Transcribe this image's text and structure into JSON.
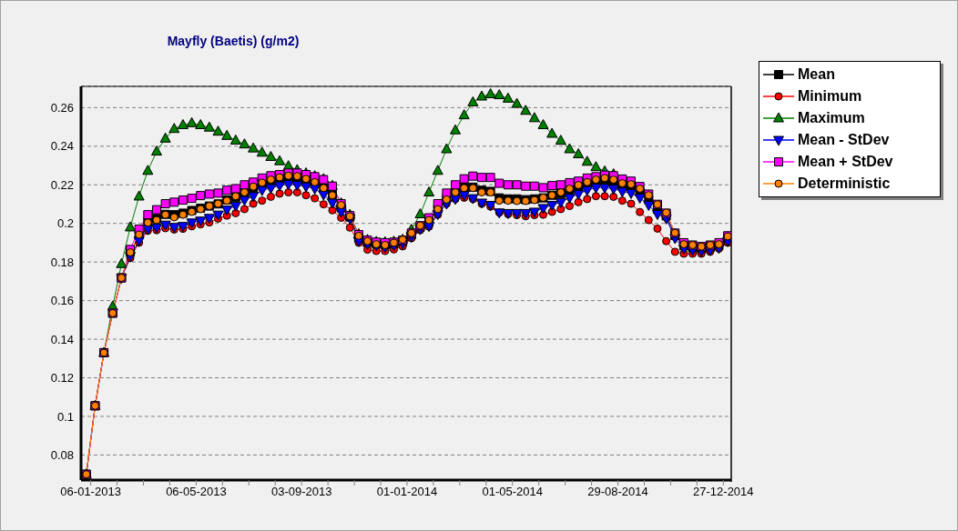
{
  "chart_data": {
    "type": "line",
    "title": "Mayfly (Baetis) (g/m2)",
    "x": [
      "2013-01-01",
      "2013-01-11",
      "2013-01-21",
      "2013-01-31",
      "2013-02-10",
      "2013-02-20",
      "2013-03-02",
      "2013-03-12",
      "2013-03-22",
      "2013-04-01",
      "2013-04-11",
      "2013-04-21",
      "2013-05-01",
      "2013-05-11",
      "2013-05-21",
      "2013-05-31",
      "2013-06-10",
      "2013-06-20",
      "2013-06-30",
      "2013-07-10",
      "2013-07-20",
      "2013-07-30",
      "2013-08-09",
      "2013-08-19",
      "2013-08-29",
      "2013-09-08",
      "2013-09-18",
      "2013-09-28",
      "2013-10-08",
      "2013-10-18",
      "2013-10-28",
      "2013-11-07",
      "2013-11-17",
      "2013-11-27",
      "2013-12-07",
      "2013-12-17",
      "2013-12-27",
      "2014-01-06",
      "2014-01-16",
      "2014-01-26",
      "2014-02-05",
      "2014-02-15",
      "2014-02-25",
      "2014-03-07",
      "2014-03-17",
      "2014-03-27",
      "2014-04-06",
      "2014-04-16",
      "2014-04-26",
      "2014-05-06",
      "2014-05-16",
      "2014-05-26",
      "2014-06-05",
      "2014-06-15",
      "2014-06-25",
      "2014-07-05",
      "2014-07-15",
      "2014-07-25",
      "2014-08-04",
      "2014-08-14",
      "2014-08-24",
      "2014-09-03",
      "2014-09-13",
      "2014-09-23",
      "2014-10-03",
      "2014-10-13",
      "2014-10-23",
      "2014-11-02",
      "2014-11-12",
      "2014-11-22",
      "2014-12-02",
      "2014-12-12",
      "2014-12-22",
      "2015-01-01"
    ],
    "series": [
      {
        "name": "Mean",
        "color": "#000000",
        "marker": "square",
        "values": [
          0.07,
          0.1055,
          0.133,
          0.1535,
          0.1718,
          0.185,
          0.194,
          0.2008,
          0.2025,
          0.2047,
          0.2045,
          0.2053,
          0.2067,
          0.2079,
          0.209,
          0.2101,
          0.2122,
          0.2136,
          0.216,
          0.2178,
          0.2203,
          0.2215,
          0.2225,
          0.2232,
          0.223,
          0.2222,
          0.2211,
          0.2188,
          0.215,
          0.2081,
          0.2033,
          0.1925,
          0.1902,
          0.1894,
          0.1888,
          0.1894,
          0.1905,
          0.194,
          0.198,
          0.2008,
          0.2075,
          0.213,
          0.2163,
          0.2188,
          0.2188,
          0.2172,
          0.2166,
          0.2132,
          0.2127,
          0.2127,
          0.2123,
          0.2127,
          0.2132,
          0.2146,
          0.2155,
          0.2172,
          0.2186,
          0.2204,
          0.2214,
          0.2218,
          0.2214,
          0.2198,
          0.2188,
          0.2162,
          0.2124,
          0.2074,
          0.2039,
          0.1937,
          0.1884,
          0.1875,
          0.1869,
          0.1875,
          0.1886,
          0.1922
        ]
      },
      {
        "name": "Minimum",
        "color": "#ff0000",
        "marker": "circle",
        "values": [
          0.07,
          0.1055,
          0.133,
          0.1535,
          0.1718,
          0.182,
          0.19,
          0.1962,
          0.1965,
          0.1975,
          0.1968,
          0.1972,
          0.1985,
          0.1995,
          0.2005,
          0.2025,
          0.204,
          0.2053,
          0.2074,
          0.2102,
          0.2118,
          0.2138,
          0.2154,
          0.2161,
          0.2161,
          0.2146,
          0.213,
          0.2099,
          0.2068,
          0.2029,
          0.1978,
          0.19,
          0.1864,
          0.1857,
          0.1857,
          0.1865,
          0.1881,
          0.1923,
          0.1965,
          0.1983,
          0.2045,
          0.2102,
          0.2126,
          0.2133,
          0.2126,
          0.2102,
          0.2087,
          0.2056,
          0.2048,
          0.2043,
          0.2037,
          0.2043,
          0.2045,
          0.206,
          0.2074,
          0.209,
          0.211,
          0.2126,
          0.2141,
          0.2141,
          0.2138,
          0.2118,
          0.2102,
          0.2059,
          0.2017,
          0.1973,
          0.1908,
          0.1853,
          0.1843,
          0.1843,
          0.1843,
          0.1853,
          0.1869,
          0.19
        ]
      },
      {
        "name": "Maximum",
        "color": "#008000",
        "marker": "triangle",
        "values": [
          0.07,
          0.1055,
          0.133,
          0.157,
          0.179,
          0.198,
          0.214,
          0.2273,
          0.2373,
          0.244,
          0.249,
          0.251,
          0.252,
          0.251,
          0.2497,
          0.2476,
          0.2454,
          0.243,
          0.241,
          0.2389,
          0.2367,
          0.2345,
          0.2323,
          0.2297,
          0.2277,
          0.226,
          0.2245,
          0.223,
          0.2195,
          0.2105,
          0.2045,
          0.1945,
          0.1915,
          0.1905,
          0.1903,
          0.1906,
          0.1916,
          0.1968,
          0.2048,
          0.2161,
          0.2273,
          0.2385,
          0.2483,
          0.2561,
          0.2628,
          0.2658,
          0.267,
          0.2665,
          0.2647,
          0.262,
          0.2584,
          0.2546,
          0.251,
          0.2465,
          0.2429,
          0.2385,
          0.2359,
          0.232,
          0.2292,
          0.227,
          0.2255,
          null,
          null,
          null,
          null,
          null,
          null,
          null,
          null,
          null,
          null,
          null,
          null,
          null
        ]
      },
      {
        "name": "Mean - StDev",
        "color": "#0000ff",
        "marker": "triangle-down",
        "values": [
          null,
          null,
          null,
          null,
          0.1718,
          0.183,
          0.191,
          0.197,
          0.1978,
          0.1993,
          0.1981,
          0.1986,
          0.2004,
          0.2014,
          0.2028,
          0.2045,
          0.2071,
          0.2091,
          0.2121,
          0.2141,
          0.2172,
          0.2183,
          0.2196,
          0.2203,
          0.2199,
          0.2191,
          0.218,
          0.2149,
          0.2107,
          0.206,
          0.2025,
          0.1908,
          0.1892,
          0.1885,
          0.1877,
          0.1885,
          0.1895,
          0.193,
          0.197,
          0.1986,
          0.2048,
          0.2102,
          0.2126,
          0.2146,
          0.213,
          0.2107,
          0.2095,
          0.2056,
          0.2053,
          0.2053,
          0.2053,
          0.206,
          0.2079,
          0.2095,
          0.211,
          0.2133,
          0.2152,
          0.2172,
          0.2185,
          0.2185,
          0.218,
          0.2165,
          0.2157,
          0.2133,
          0.2095,
          0.2048,
          0.2025,
          0.1923,
          0.1869,
          0.1861,
          0.1857,
          0.1861,
          0.1872,
          0.1908
        ]
      },
      {
        "name": "Mean + StDev",
        "color": "#ff00ff",
        "marker": "square",
        "values": [
          0.07,
          0.1055,
          0.133,
          0.1535,
          0.1718,
          0.1865,
          0.197,
          0.2045,
          0.2071,
          0.2102,
          0.211,
          0.2121,
          0.213,
          0.2144,
          0.2152,
          0.2157,
          0.2172,
          0.218,
          0.22,
          0.2214,
          0.2235,
          0.2247,
          0.2253,
          0.2261,
          0.2261,
          0.2253,
          0.2242,
          0.2227,
          0.2193,
          0.2102,
          0.204,
          0.1942,
          0.1913,
          0.1903,
          0.19,
          0.1903,
          0.1913,
          0.195,
          0.1988,
          0.2029,
          0.2102,
          0.2157,
          0.22,
          0.2231,
          0.2245,
          0.2238,
          0.2238,
          0.2208,
          0.22,
          0.22,
          0.2193,
          0.2193,
          0.2185,
          0.2196,
          0.22,
          0.2211,
          0.2219,
          0.2235,
          0.2242,
          0.225,
          0.2247,
          0.223,
          0.2219,
          0.2191,
          0.2152,
          0.2099,
          0.2053,
          0.195,
          0.19,
          0.1888,
          0.188,
          0.1888,
          0.19,
          0.1936
        ]
      },
      {
        "name": "Deterministic",
        "color": "#ff8000",
        "marker": "circle",
        "values": [
          0.07,
          0.1055,
          0.133,
          0.1535,
          0.1718,
          0.185,
          0.1942,
          0.2004,
          0.2017,
          0.2045,
          0.2032,
          0.2045,
          0.206,
          0.2074,
          0.209,
          0.2102,
          0.2118,
          0.2141,
          0.2161,
          0.2191,
          0.2211,
          0.2227,
          0.2239,
          0.2247,
          0.2245,
          0.2231,
          0.2214,
          0.2183,
          0.2146,
          0.2095,
          0.2037,
          0.1936,
          0.1908,
          0.1892,
          0.1888,
          0.19,
          0.1916,
          0.195,
          0.1989,
          0.2017,
          0.2074,
          0.2124,
          0.2161,
          0.2183,
          0.2183,
          0.2161,
          0.2161,
          0.2118,
          0.2118,
          0.2116,
          0.2116,
          0.2121,
          0.2133,
          0.2146,
          0.2161,
          0.218,
          0.2199,
          0.2214,
          0.2227,
          0.2235,
          0.2227,
          0.2208,
          0.2203,
          0.218,
          0.2146,
          0.2099,
          0.2056,
          0.1951,
          0.1892,
          0.1888,
          0.188,
          0.1888,
          0.1892,
          0.1933
        ]
      }
    ],
    "xlim": [
      "2012-12-26",
      "2015-01-05"
    ],
    "xticks": [
      {
        "value": "2013-01-06",
        "label": "06-01-2013"
      },
      {
        "value": "2013-02-05",
        "label": null
      },
      {
        "value": "2013-03-07",
        "label": null
      },
      {
        "value": "2013-04-06",
        "label": null
      },
      {
        "value": "2013-05-06",
        "label": "06-05-2013"
      },
      {
        "value": "2013-06-05",
        "label": null
      },
      {
        "value": "2013-07-05",
        "label": null
      },
      {
        "value": "2013-08-04",
        "label": null
      },
      {
        "value": "2013-09-03",
        "label": "03-09-2013"
      },
      {
        "value": "2013-10-03",
        "label": null
      },
      {
        "value": "2013-11-02",
        "label": null
      },
      {
        "value": "2013-12-02",
        "label": null
      },
      {
        "value": "2014-01-01",
        "label": "01-01-2014"
      },
      {
        "value": "2014-01-31",
        "label": null
      },
      {
        "value": "2014-03-02",
        "label": null
      },
      {
        "value": "2014-04-01",
        "label": null
      },
      {
        "value": "2014-05-01",
        "label": "01-05-2014"
      },
      {
        "value": "2014-05-31",
        "label": null
      },
      {
        "value": "2014-06-30",
        "label": null
      },
      {
        "value": "2014-07-30",
        "label": null
      },
      {
        "value": "2014-08-29",
        "label": "29-08-2014"
      },
      {
        "value": "2014-09-28",
        "label": null
      },
      {
        "value": "2014-10-28",
        "label": null
      },
      {
        "value": "2014-11-27",
        "label": null
      },
      {
        "value": "2014-12-27",
        "label": "27-12-2014"
      }
    ],
    "ylim": [
      0.067,
      0.271
    ],
    "yticks": [
      0.08,
      0.1,
      0.12,
      0.14,
      0.16,
      0.18,
      0.2,
      0.22,
      0.24,
      0.26
    ],
    "grid": "y",
    "legend": "top right",
    "line_style": "solid"
  }
}
